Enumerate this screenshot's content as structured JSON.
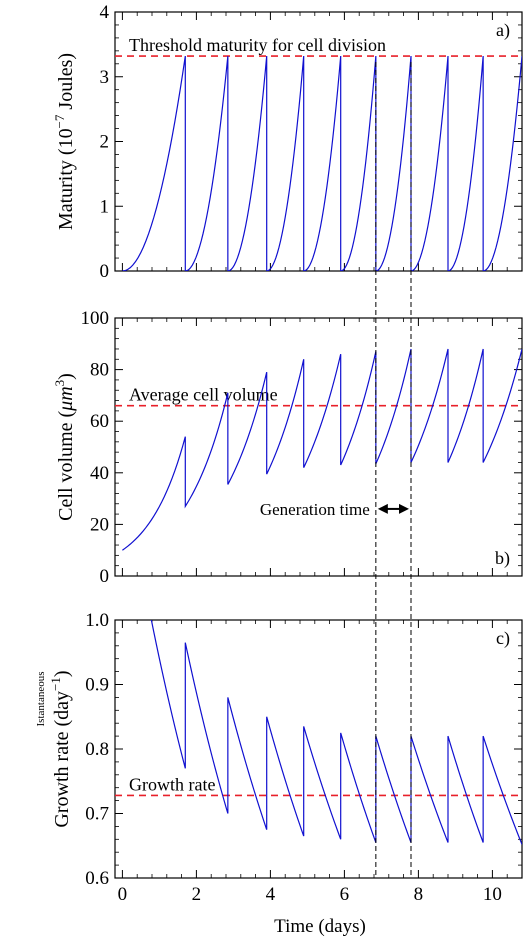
{
  "chart_data": [
    {
      "panel_label": "a)",
      "type": "line",
      "ylabel": "Maturity (10⁻⁷ Joules)",
      "ylabel_main": "Maturity (10",
      "ylabel_sup": "−7",
      "ylabel_tail": " Joules)",
      "ylim": [
        0,
        4
      ],
      "yticks": [
        0,
        1,
        2,
        3,
        4
      ],
      "xlim": [
        -0.2,
        10.8
      ],
      "xticks": [
        0,
        2,
        4,
        6,
        8,
        10
      ],
      "threshold": {
        "y": 3.32,
        "label": "Threshold maturity for cell division",
        "color": "#e8202a"
      },
      "series_color": "#1010d0",
      "cycle_starts": [
        0.0,
        1.7,
        2.85,
        3.9,
        4.9,
        5.9,
        6.85,
        7.8,
        8.8,
        9.75
      ],
      "peak": 3.32,
      "curve_exponent": 2.0
    },
    {
      "panel_label": "b)",
      "type": "line",
      "ylabel": "Cell volume (μm³)",
      "ylabel_main": "Cell volume (",
      "ylabel_mu": "μm",
      "ylabel_sup": "3",
      "ylabel_tail": ")",
      "ylim": [
        0,
        100
      ],
      "yticks": [
        0,
        20,
        40,
        60,
        80,
        100
      ],
      "xlim": [
        -0.2,
        10.8
      ],
      "xticks": [
        0,
        2,
        4,
        6,
        8,
        10
      ],
      "threshold": {
        "y": 66,
        "label": "Average cell volume",
        "color": "#e8202a"
      },
      "series_color": "#1010d0",
      "segments": [
        {
          "x0": 0.0,
          "y0": 10,
          "x1": 1.7,
          "y1": 54
        },
        {
          "x0": 1.7,
          "y0": 27,
          "x1": 2.85,
          "y1": 71
        },
        {
          "x0": 2.85,
          "y0": 35.5,
          "x1": 3.9,
          "y1": 79
        },
        {
          "x0": 3.9,
          "y0": 39.5,
          "x1": 4.9,
          "y1": 84
        },
        {
          "x0": 4.9,
          "y0": 42,
          "x1": 5.9,
          "y1": 86
        },
        {
          "x0": 5.9,
          "y0": 43,
          "x1": 6.85,
          "y1": 87
        },
        {
          "x0": 6.85,
          "y0": 43.5,
          "x1": 7.8,
          "y1": 88
        },
        {
          "x0": 7.8,
          "y0": 44,
          "x1": 8.8,
          "y1": 88
        },
        {
          "x0": 8.8,
          "y0": 44,
          "x1": 9.75,
          "y1": 88
        },
        {
          "x0": 9.75,
          "y0": 44,
          "x1": 10.8,
          "y1": 88
        }
      ],
      "generation_time": {
        "label": "Generation time",
        "x_start": 6.85,
        "x_end": 7.8,
        "y": 26
      }
    },
    {
      "panel_label": "c)",
      "type": "line",
      "ylabel": "Growth rate (day⁻¹)",
      "ylabel_small": "Istantaneous",
      "ylabel_main": "Growth rate (day",
      "ylabel_sup": "−1",
      "ylabel_tail": ")",
      "ylim": [
        0.6,
        1.0
      ],
      "yticks": [
        0.6,
        0.7,
        0.8,
        0.9,
        1.0
      ],
      "xlim": [
        -0.2,
        10.8
      ],
      "xticks": [
        0,
        2,
        4,
        6,
        8,
        10
      ],
      "threshold": {
        "y": 0.728,
        "label": "Growth rate",
        "color": "#e8202a"
      },
      "series_color": "#1010d0",
      "segments": [
        {
          "x0": 0.0,
          "y0": 1.25,
          "x1": 1.7,
          "y1": 0.77
        },
        {
          "x0": 1.7,
          "y0": 0.965,
          "x1": 2.85,
          "y1": 0.7
        },
        {
          "x0": 2.85,
          "y0": 0.88,
          "x1": 3.9,
          "y1": 0.675
        },
        {
          "x0": 3.9,
          "y0": 0.85,
          "x1": 4.9,
          "y1": 0.665
        },
        {
          "x0": 4.9,
          "y0": 0.835,
          "x1": 5.9,
          "y1": 0.66
        },
        {
          "x0": 5.9,
          "y0": 0.825,
          "x1": 6.85,
          "y1": 0.655
        },
        {
          "x0": 6.85,
          "y0": 0.82,
          "x1": 7.8,
          "y1": 0.655
        },
        {
          "x0": 7.8,
          "y0": 0.82,
          "x1": 8.8,
          "y1": 0.655
        },
        {
          "x0": 8.8,
          "y0": 0.82,
          "x1": 9.75,
          "y1": 0.655
        },
        {
          "x0": 9.75,
          "y0": 0.82,
          "x1": 10.8,
          "y1": 0.652
        }
      ],
      "xlabel": "Time (days)"
    }
  ],
  "guides": {
    "dashed_x": [
      6.85,
      7.8
    ]
  }
}
